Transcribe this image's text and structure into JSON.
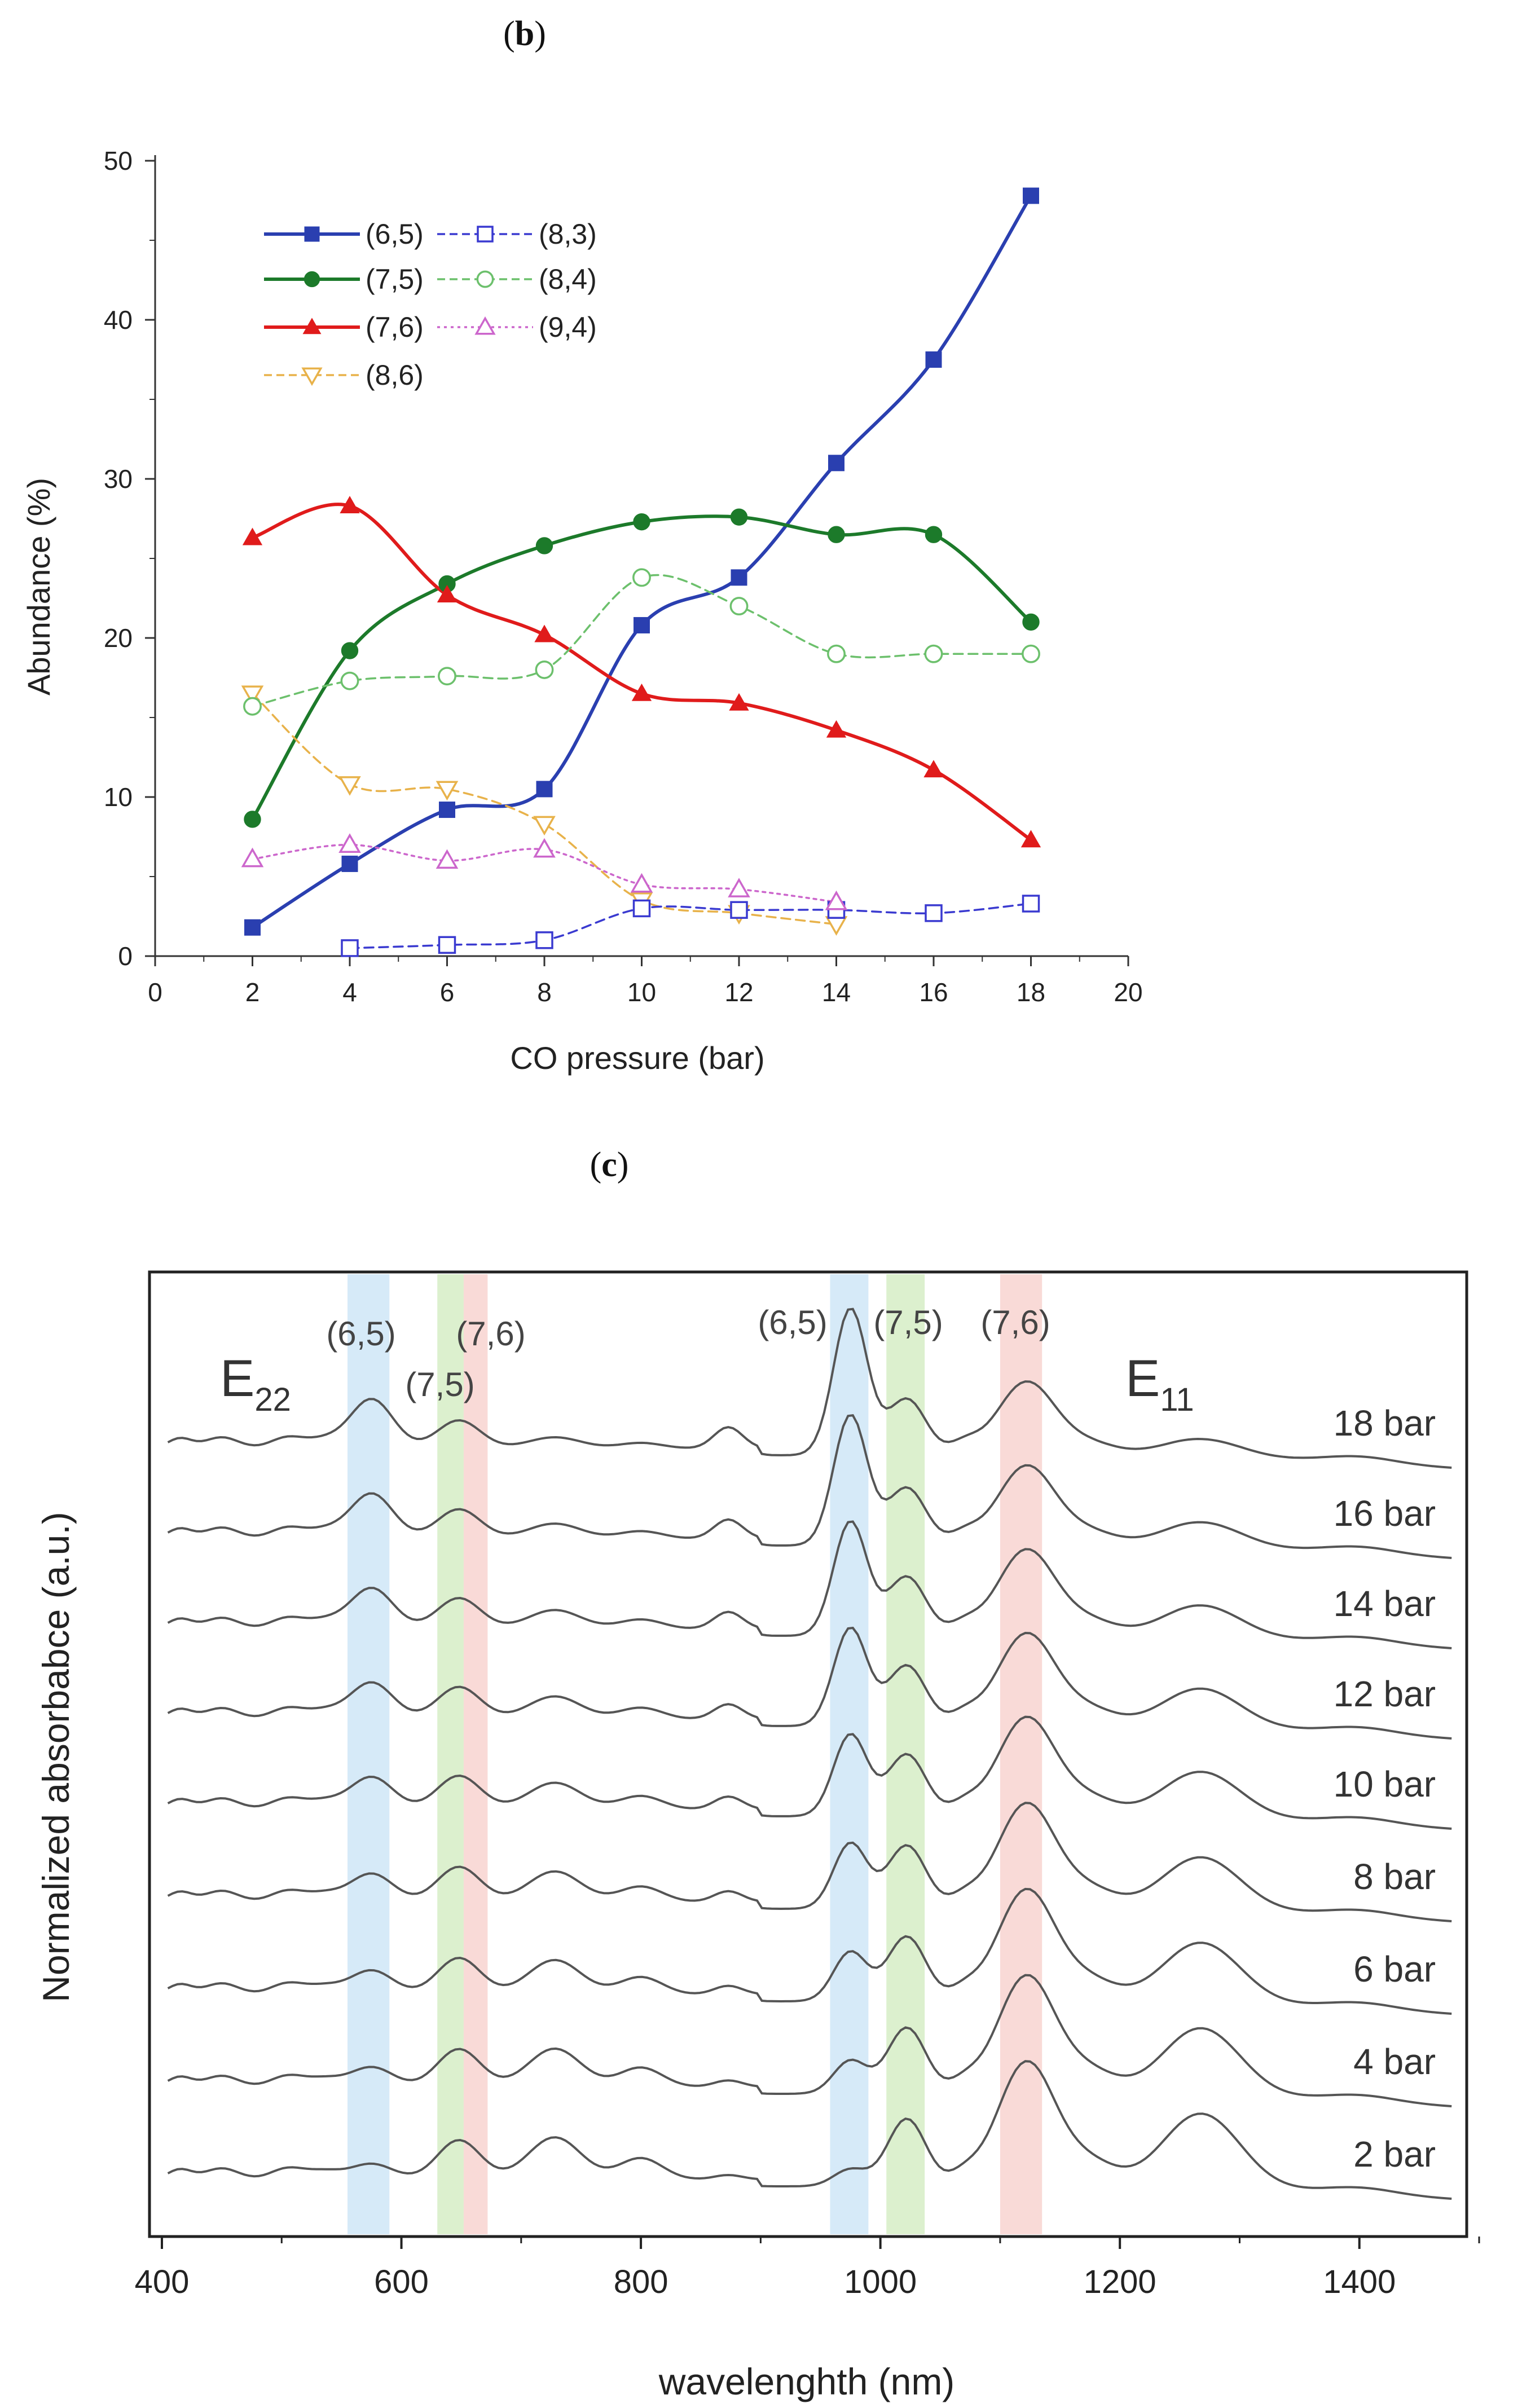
{
  "chart_data": [
    {
      "panel_label": "b",
      "type": "line",
      "title": "",
      "xlabel": "CO pressure (bar)",
      "ylabel": "Abundance (%)",
      "xlim": [
        0,
        20
      ],
      "ylim": [
        0,
        50
      ],
      "xticks": [
        0,
        2,
        4,
        6,
        8,
        10,
        12,
        14,
        16,
        18,
        20
      ],
      "yticks": [
        0,
        10,
        20,
        30,
        40,
        50
      ],
      "legend_position": "top-left",
      "series": [
        {
          "name": "(6,5)",
          "color": "#2a3fb0",
          "marker": "square-filled",
          "line": "solid",
          "points": [
            [
              2,
              1.8
            ],
            [
              4,
              5.8
            ],
            [
              6,
              9.2
            ],
            [
              8,
              10.5
            ],
            [
              10,
              20.8
            ],
            [
              12,
              23.8
            ],
            [
              14,
              31.0
            ],
            [
              16,
              37.5
            ],
            [
              18,
              47.8
            ]
          ]
        },
        {
          "name": "(7,5)",
          "color": "#1c7a2a",
          "marker": "circle-filled",
          "line": "solid",
          "points": [
            [
              2,
              8.6
            ],
            [
              4,
              19.2
            ],
            [
              6,
              23.4
            ],
            [
              8,
              25.8
            ],
            [
              10,
              27.3
            ],
            [
              12,
              27.6
            ],
            [
              14,
              26.5
            ],
            [
              16,
              26.5
            ],
            [
              18,
              21.0
            ]
          ]
        },
        {
          "name": "(7,6)",
          "color": "#e01b1b",
          "marker": "triangle-up-filled",
          "line": "solid",
          "points": [
            [
              2,
              26.3
            ],
            [
              4,
              28.3
            ],
            [
              6,
              22.7
            ],
            [
              8,
              20.2
            ],
            [
              10,
              16.5
            ],
            [
              12,
              15.9
            ],
            [
              14,
              14.2
            ],
            [
              16,
              11.7
            ],
            [
              18,
              7.3
            ]
          ]
        },
        {
          "name": "(8,6)",
          "color": "#e8b24a",
          "marker": "triangle-down-open",
          "line": "dashed",
          "points": [
            [
              2,
              16.5
            ],
            [
              4,
              10.8
            ],
            [
              6,
              10.5
            ],
            [
              8,
              8.3
            ],
            [
              10,
              3.5
            ],
            [
              12,
              2.7
            ],
            [
              14,
              2.0
            ]
          ]
        },
        {
          "name": "(8,3)",
          "color": "#3a3ad0",
          "marker": "square-open",
          "line": "dashed",
          "points": [
            [
              4,
              0.5
            ],
            [
              6,
              0.7
            ],
            [
              8,
              1.0
            ],
            [
              10,
              3.0
            ],
            [
              12,
              2.9
            ],
            [
              14,
              2.9
            ],
            [
              16,
              2.7
            ],
            [
              18,
              3.3
            ]
          ]
        },
        {
          "name": "(8,4)",
          "color": "#6cc06c",
          "marker": "circle-open",
          "line": "dashed",
          "points": [
            [
              2,
              15.7
            ],
            [
              4,
              17.3
            ],
            [
              6,
              17.6
            ],
            [
              8,
              18.0
            ],
            [
              10,
              23.8
            ],
            [
              12,
              22.0
            ],
            [
              14,
              19.0
            ],
            [
              16,
              19.0
            ],
            [
              18,
              19.0
            ]
          ]
        },
        {
          "name": "(9,4)",
          "color": "#cc66cc",
          "marker": "triangle-up-open",
          "line": "dotted",
          "points": [
            [
              2,
              6.1
            ],
            [
              4,
              7.0
            ],
            [
              6,
              6.0
            ],
            [
              8,
              6.7
            ],
            [
              10,
              4.5
            ],
            [
              12,
              4.2
            ],
            [
              14,
              3.4
            ]
          ]
        }
      ]
    },
    {
      "panel_label": "c",
      "type": "line",
      "title": "",
      "xlabel": "wavelenghth (nm)",
      "ylabel": "Normalized absorbabce (a.u.)",
      "xlim": [
        400,
        1500
      ],
      "xticks": [
        400,
        600,
        800,
        1000,
        1200,
        1400
      ],
      "region_labels": [
        "E",
        "E"
      ],
      "region_subscripts": [
        "22",
        "11"
      ],
      "bands": [
        {
          "label": "(6,5)",
          "range": [
            555,
            590
          ],
          "color": "#cfe6f7"
        },
        {
          "label": "(7,5)",
          "range": [
            630,
            652
          ],
          "color": "#d6edc6"
        },
        {
          "label": "(7,6)",
          "range": [
            652,
            672
          ],
          "color": "#f8d3d0"
        },
        {
          "label": "(6,5)",
          "range": [
            958,
            990
          ],
          "color": "#cfe6f7"
        },
        {
          "label": "(7,5)",
          "range": [
            1005,
            1037
          ],
          "color": "#d6edc6"
        },
        {
          "label": "(7,6)",
          "range": [
            1100,
            1135
          ],
          "color": "#f8d3d0"
        }
      ],
      "series": [
        {
          "name": "18 bar",
          "pressure": 18
        },
        {
          "name": "16 bar",
          "pressure": 16
        },
        {
          "name": "14 bar",
          "pressure": 14
        },
        {
          "name": "12 bar",
          "pressure": 12
        },
        {
          "name": "10 bar",
          "pressure": 10
        },
        {
          "name": "8 bar",
          "pressure": 8
        },
        {
          "name": "6 bar",
          "pressure": 6
        },
        {
          "name": "4 bar",
          "pressure": 4
        },
        {
          "name": "2 bar",
          "pressure": 2
        }
      ]
    }
  ]
}
